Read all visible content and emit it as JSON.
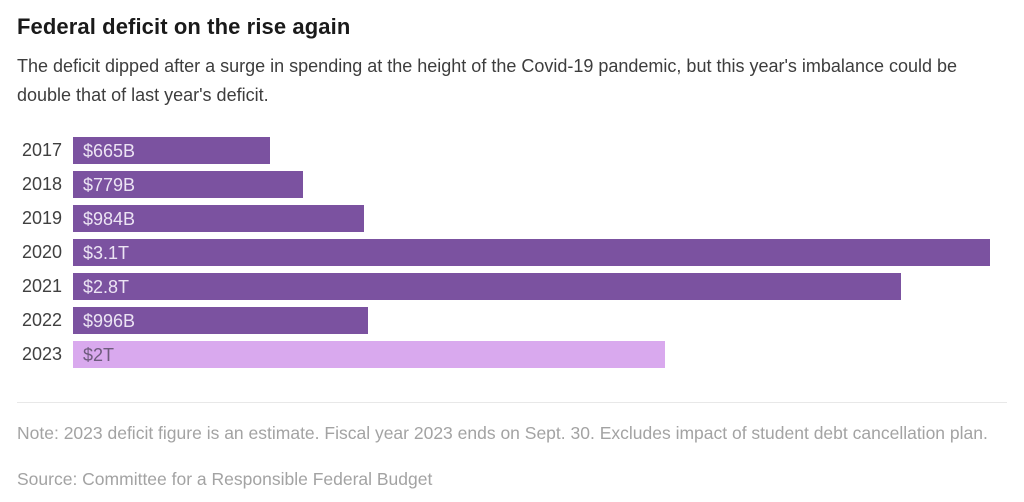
{
  "header": {
    "title": "Federal deficit on the rise again",
    "subtitle": "The deficit dipped after a surge in spending at the height of the Covid-19 pandemic, but this year's imbalance could be double that of last year's deficit."
  },
  "chart_data": {
    "type": "bar",
    "orientation": "horizontal",
    "title": "Federal deficit on the rise again",
    "categories": [
      "2017",
      "2018",
      "2019",
      "2020",
      "2021",
      "2022",
      "2023"
    ],
    "values_billions": [
      665,
      779,
      984,
      3100,
      2800,
      996,
      2000
    ],
    "bar_labels": [
      "$665B",
      "$779B",
      "$984B",
      "$3.1T",
      "$2.8T",
      "$996B",
      "$2T"
    ],
    "xlim_billions": [
      0,
      3100
    ],
    "grid": "off",
    "legend": "none",
    "value_labels_position": "inside-left",
    "highlight_category": "2023",
    "highlight_reason": "2023 figure is an estimate",
    "colors": {
      "bar": "#7b52a0",
      "highlight_bar": "#d9a9ee",
      "bar_label_text": "#ece4f4",
      "highlight_bar_label_text": "#6e5b7d",
      "year_label_text": "#404040"
    }
  },
  "footer": {
    "note": "Note: 2023 deficit figure is an estimate. Fiscal year 2023 ends on Sept. 30. Excludes impact of student debt cancellation plan.",
    "source": "Source: Committee for a Responsible Federal Budget"
  }
}
